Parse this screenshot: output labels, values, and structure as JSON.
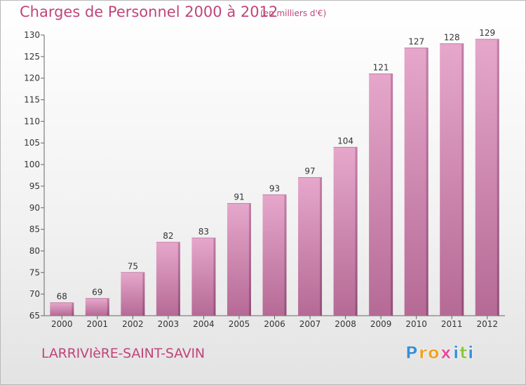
{
  "chart_data": {
    "type": "bar",
    "title": "Charges de Personnel 2000 à 2012",
    "subtitle": "(en milliers d'€)",
    "categories": [
      "2000",
      "2001",
      "2002",
      "2003",
      "2004",
      "2005",
      "2006",
      "2007",
      "2008",
      "2009",
      "2010",
      "2011",
      "2012"
    ],
    "values": [
      68,
      69,
      75,
      82,
      83,
      91,
      93,
      97,
      104,
      121,
      127,
      128,
      129
    ],
    "ylim": [
      65,
      130
    ],
    "yticks": [
      65,
      70,
      75,
      80,
      85,
      90,
      95,
      100,
      105,
      110,
      115,
      120,
      125,
      130
    ],
    "xlabel": "",
    "ylabel": "",
    "grid": false,
    "bar_color": "#d98bb5"
  },
  "commune_name": "LARRIVIèRE-SAINT-SAVIN",
  "brand": {
    "name": "Proxiti",
    "letters": [
      {
        "ch": "P",
        "color": "#3a8fd6"
      },
      {
        "ch": "r",
        "color": "#f0a020"
      },
      {
        "ch": "o",
        "color": "#f0a020"
      },
      {
        "ch": "x",
        "color": "#e84a9a"
      },
      {
        "ch": "i",
        "color": "#3a8fd6"
      },
      {
        "ch": "t",
        "color": "#8cc63f"
      },
      {
        "ch": "i",
        "color": "#3a8fd6"
      }
    ]
  }
}
